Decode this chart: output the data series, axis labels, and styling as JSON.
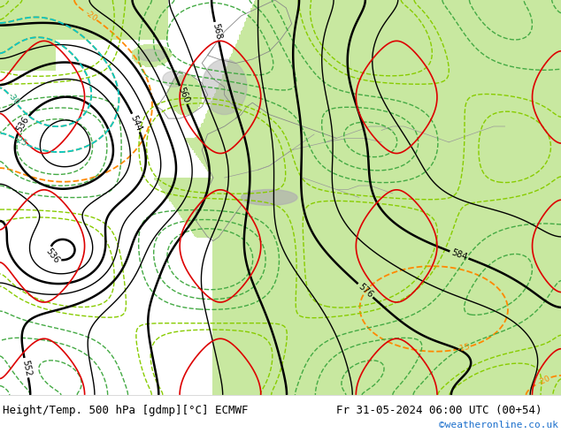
{
  "title_left": "Height/Temp. 500 hPa [gdmp][°C] ECMWF",
  "title_right": "Fr 31-05-2024 06:00 UTC (00+54)",
  "credit": "©weatheronline.co.uk",
  "map_bg_land": "#c8e8a0",
  "map_bg_sea": "#d8d8d8",
  "map_bg_topo": "#a8a8a8",
  "fig_width": 6.34,
  "fig_height": 4.9,
  "dpi": 100,
  "bottom_bar_color": "#ffffff",
  "bottom_text_color": "#000000",
  "credit_color": "#1a6fcc",
  "font_size_title": 9,
  "font_size_credit": 8
}
